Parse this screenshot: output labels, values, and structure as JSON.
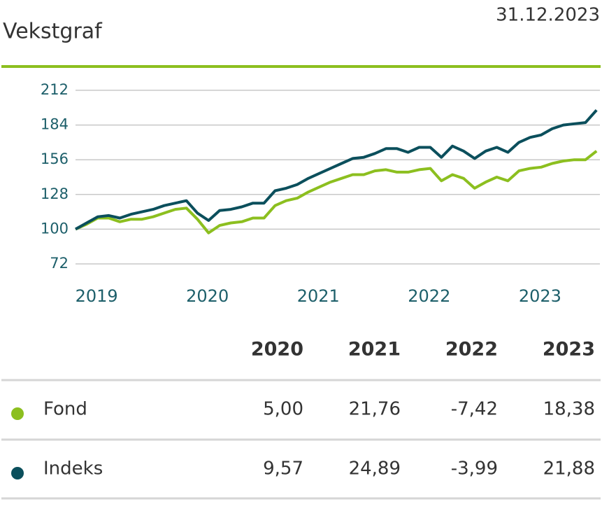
{
  "chart_data": {
    "type": "line",
    "title": "Vekstgraf",
    "date": "31.12.2023",
    "x": [
      2018.81,
      2018.91,
      2019.01,
      2019.11,
      2019.21,
      2019.31,
      2019.41,
      2019.51,
      2019.61,
      2019.71,
      2019.81,
      2019.91,
      2020.01,
      2020.11,
      2020.21,
      2020.31,
      2020.41,
      2020.51,
      2020.61,
      2020.71,
      2020.81,
      2020.91,
      2021.01,
      2021.11,
      2021.21,
      2021.31,
      2021.41,
      2021.51,
      2021.61,
      2021.71,
      2021.81,
      2021.91,
      2022.01,
      2022.11,
      2022.21,
      2022.31,
      2022.41,
      2022.51,
      2022.61,
      2022.71,
      2022.81,
      2022.91,
      2023.01,
      2023.11,
      2023.21,
      2023.31,
      2023.41,
      2023.51
    ],
    "series": [
      {
        "name": "Fond",
        "color": "#8cbf1f",
        "values": [
          100,
          104,
          109,
          109,
          106,
          108,
          108,
          110,
          113,
          116,
          117,
          108,
          97,
          103,
          105,
          106,
          109,
          109,
          119,
          123,
          125,
          130,
          134,
          138,
          141,
          144,
          144,
          147,
          148,
          146,
          146,
          148,
          149,
          139,
          144,
          141,
          133,
          138,
          142,
          139,
          147,
          149,
          150,
          153,
          155,
          156,
          156,
          163
        ]
      },
      {
        "name": "Indeks",
        "color": "#0b4f5c",
        "values": [
          100,
          105,
          110,
          111,
          109,
          112,
          114,
          116,
          119,
          121,
          123,
          113,
          107,
          115,
          116,
          118,
          121,
          121,
          131,
          133,
          136,
          141,
          145,
          149,
          153,
          157,
          158,
          161,
          165,
          165,
          162,
          166,
          166,
          158,
          167,
          163,
          157,
          163,
          166,
          162,
          170,
          174,
          176,
          181,
          184,
          185,
          186,
          196
        ]
      }
    ],
    "xlim": [
      2018.81,
      2023.54
    ],
    "xticks": [
      2019,
      2020,
      2021,
      2022,
      2023
    ],
    "ylim": [
      72,
      212
    ],
    "yticks": [
      72,
      100,
      128,
      156,
      184,
      212
    ],
    "grid": true
  },
  "table": {
    "header": [
      "2020",
      "2021",
      "2022",
      "2023"
    ],
    "rows": [
      {
        "name": "Fond",
        "values": [
          "5,00",
          "21,76",
          "-7,42",
          "18,38"
        ]
      },
      {
        "name": "Indeks",
        "values": [
          "9,57",
          "24,89",
          "-3,99",
          "21,88"
        ]
      }
    ]
  }
}
